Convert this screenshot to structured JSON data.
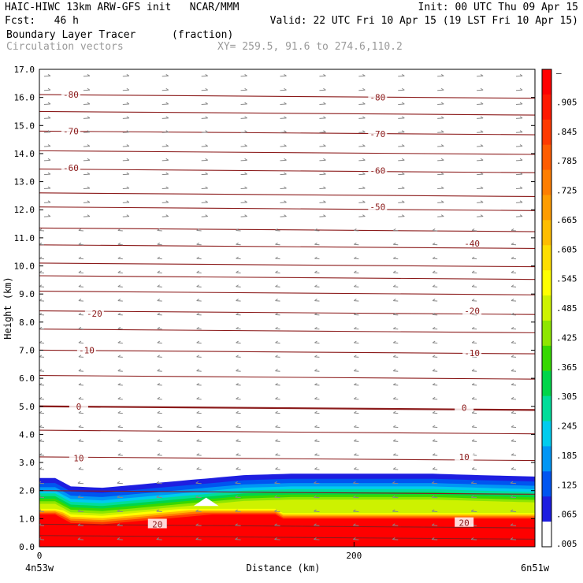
{
  "header": {
    "line1_left": "HAIC-HIWC 13km ARW-GFS init   NCAR/MMM",
    "line1_right": "Init: 00 UTC Thu 09 Apr 15",
    "line2_left": "Fcst:   46 h",
    "line2_right": "Valid: 22 UTC Fri 10 Apr 15 (19 LST Fri 10 Apr 15)",
    "field_name": "Boundary Layer Tracer",
    "field_unit": "(fraction)",
    "vector_label": "Circulation vectors",
    "xy_label": "XY= 259.5, 91.6 to 274.6,110.2"
  },
  "chart_data": {
    "type": "heatmap",
    "xlabel": "Distance (km)",
    "ylabel": "Height (km)",
    "xlim": [
      0,
      315
    ],
    "ylim": [
      0,
      17
    ],
    "xticks": [
      "0",
      "200"
    ],
    "xtick_values": [
      0,
      200
    ],
    "yticks": [
      "0.0",
      "1.0",
      "2.0",
      "3.0",
      "4.0",
      "5.0",
      "6.0",
      "7.0",
      "8.0",
      "9.0",
      "10.0",
      "11.0",
      "12.0",
      "13.0",
      "14.0",
      "15.0",
      "16.0",
      "17.0"
    ],
    "x_endpoint_left": "4n53w",
    "x_endpoint_right": "6n51w",
    "colorbar": {
      "labels": [
        "–",
        ".905",
        ".845",
        ".785",
        ".725",
        ".665",
        ".605",
        ".545",
        ".485",
        ".425",
        ".365",
        ".305",
        ".245",
        ".185",
        ".125",
        ".065",
        ".005"
      ],
      "colors": [
        "#ff0000",
        "#ff1800",
        "#ff3a00",
        "#ff5c00",
        "#ff7e00",
        "#ff9c00",
        "#ffbd00",
        "#ffde00",
        "#ffff00",
        "#cdf200",
        "#8ee600",
        "#36d800",
        "#00d54a",
        "#00dd9a",
        "#00ccee",
        "#0096f5",
        "#0055f0",
        "#1e1ee0",
        "#ffffff"
      ]
    },
    "tracer_layer": {
      "top_height_km": [
        2.45,
        2.45,
        2.15,
        2.1,
        2.25,
        2.4,
        2.55,
        2.6,
        2.6,
        2.6,
        2.6,
        2.55,
        2.5
      ],
      "x_km": [
        0,
        10,
        20,
        40,
        70,
        100,
        130,
        160,
        190,
        220,
        250,
        280,
        315
      ]
    },
    "contour_labels": [
      {
        "text": "-80",
        "x": 20,
        "y": 16.1
      },
      {
        "text": "-80",
        "x": 215,
        "y": 16.0
      },
      {
        "text": "-70",
        "x": 20,
        "y": 14.8
      },
      {
        "text": "-70",
        "x": 215,
        "y": 14.7
      },
      {
        "text": "-60",
        "x": 20,
        "y": 13.5
      },
      {
        "text": "-60",
        "x": 215,
        "y": 13.4
      },
      {
        "text": "-50",
        "x": 215,
        "y": 12.1
      },
      {
        "text": "-40",
        "x": 275,
        "y": 10.8
      },
      {
        "text": "-20",
        "x": 35,
        "y": 8.3
      },
      {
        "text": "-20",
        "x": 275,
        "y": 8.4
      },
      {
        "text": "-10",
        "x": 30,
        "y": 7.0
      },
      {
        "text": "-10",
        "x": 275,
        "y": 6.9
      },
      {
        "text": "0",
        "x": 25,
        "y": 5.0
      },
      {
        "text": "0",
        "x": 270,
        "y": 4.95
      },
      {
        "text": "10",
        "x": 25,
        "y": 3.15
      },
      {
        "text": "10",
        "x": 270,
        "y": 3.2
      },
      {
        "text": "20",
        "x": 75,
        "y": 0.8
      },
      {
        "text": "20",
        "x": 270,
        "y": 0.85
      }
    ]
  },
  "colors": {
    "contour": "#8b1a1a",
    "vector": "#888888",
    "axis": "#000000"
  }
}
